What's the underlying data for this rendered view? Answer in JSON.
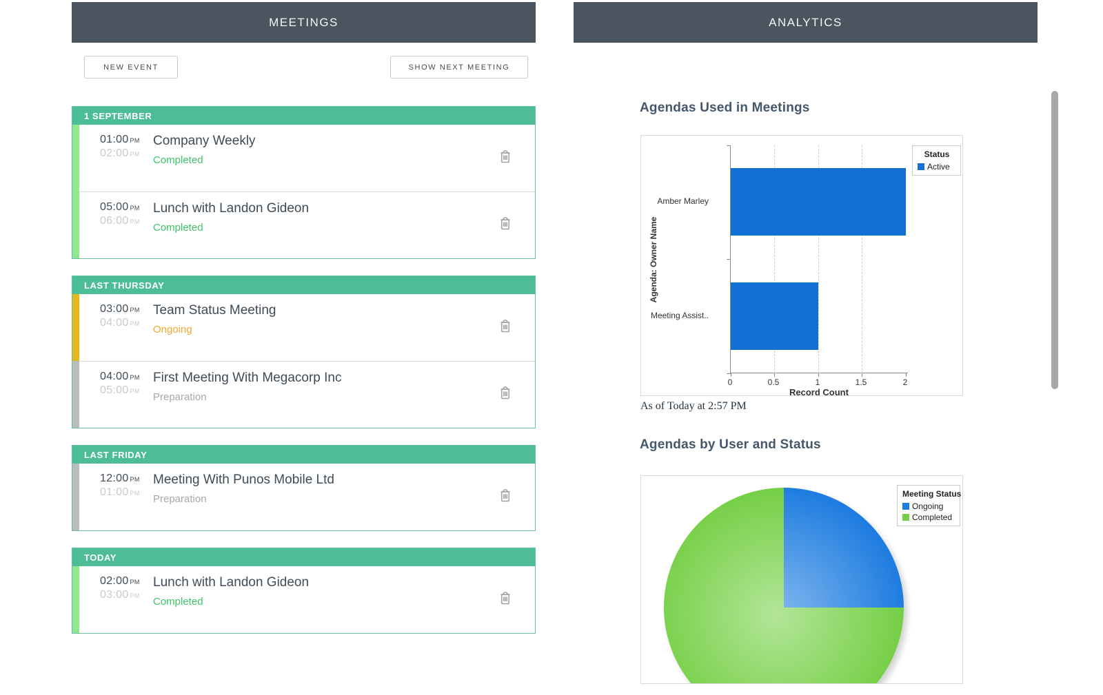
{
  "meetings_panel": {
    "header": "MEETINGS",
    "buttons": {
      "new_event": "NEW EVENT",
      "show_next_meeting": "SHOW NEXT MEETING"
    },
    "sections": [
      {
        "label": "1 SEPTEMBER",
        "events": [
          {
            "start_time": "01:00",
            "start_period": "PM",
            "end_time": "02:00",
            "end_period": "PM",
            "title": "Company Weekly",
            "status": "Completed"
          },
          {
            "start_time": "05:00",
            "start_period": "PM",
            "end_time": "06:00",
            "end_period": "PM",
            "title": "Lunch with Landon Gideon",
            "status": "Completed"
          }
        ]
      },
      {
        "label": "LAST THURSDAY",
        "events": [
          {
            "start_time": "03:00",
            "start_period": "PM",
            "end_time": "04:00",
            "end_period": "PM",
            "title": "Team Status Meeting",
            "status": "Ongoing"
          },
          {
            "start_time": "04:00",
            "start_period": "PM",
            "end_time": "05:00",
            "end_period": "PM",
            "title": "First Meeting With Megacorp Inc",
            "status": "Preparation"
          }
        ]
      },
      {
        "label": "LAST FRIDAY",
        "events": [
          {
            "start_time": "12:00",
            "start_period": "PM",
            "end_time": "01:00",
            "end_period": "PM",
            "title": "Meeting With Punos Mobile Ltd",
            "status": "Preparation"
          }
        ]
      },
      {
        "label": "TODAY",
        "events": [
          {
            "start_time": "02:00",
            "start_period": "PM",
            "end_time": "03:00",
            "end_period": "PM",
            "title": "Lunch with Landon Gideon",
            "status": "Completed"
          }
        ]
      }
    ]
  },
  "analytics_panel": {
    "header": "ANALYTICS",
    "bar_chart_heading": "Agendas Used in Meetings",
    "as_of_text": "As of Today at 2:57 PM",
    "pie_chart_heading": "Agendas by User and Status"
  },
  "chart_data": [
    {
      "type": "bar",
      "orientation": "horizontal",
      "title": "Agendas Used in Meetings",
      "categories": [
        "Amber Marley",
        "Meeting Assist.."
      ],
      "values": [
        2,
        1
      ],
      "series_name": "Active",
      "legend_title": "Status",
      "xlabel": "Record Count",
      "ylabel": "Agenda: Owner Name",
      "xticks": [
        0,
        0.5,
        1,
        1.5,
        2
      ],
      "xlim": [
        0,
        2
      ],
      "bar_color": "#1170d2",
      "legend_position": "top-right",
      "grid": "dashed-vertical"
    },
    {
      "type": "pie",
      "title": "Agendas by User and Status",
      "legend_title": "Meeting Status",
      "slices": [
        {
          "label": "Ongoing",
          "value": 1,
          "color": "#1d7ce0"
        },
        {
          "label": "Completed",
          "value": 3,
          "color": "#74cf44"
        }
      ],
      "start_angle_deg": 0,
      "legend_position": "top-right"
    }
  ],
  "colors": {
    "panel_header_bg": "#4a5560",
    "section_header_bg": "#4dbd97",
    "status_completed": "#3dc368",
    "status_ongoing": "#f3a72e",
    "status_preparation": "#a8a8a8",
    "event_bar_completed": "#8fe88f",
    "event_bar_ongoing": "#e5b71f",
    "event_bar_preparation": "#b9bcbe",
    "bar_chart_blue": "#1170d2",
    "pie_blue": "#1d7ce0",
    "pie_green": "#74cf44"
  }
}
